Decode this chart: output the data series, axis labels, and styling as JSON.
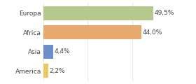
{
  "categories": [
    "America",
    "Asia",
    "Africa",
    "Europa"
  ],
  "values": [
    2.2,
    4.4,
    44.0,
    49.5
  ],
  "labels": [
    "2,2%",
    "4,4%",
    "44,0%",
    "49,5%"
  ],
  "bar_colors": [
    "#f0c75e",
    "#6e8fc9",
    "#e8a96e",
    "#b5c98e"
  ],
  "xlim": [
    0,
    58
  ],
  "background_color": "#ffffff",
  "label_fontsize": 6.5,
  "tick_fontsize": 6.5,
  "bar_height": 0.72
}
